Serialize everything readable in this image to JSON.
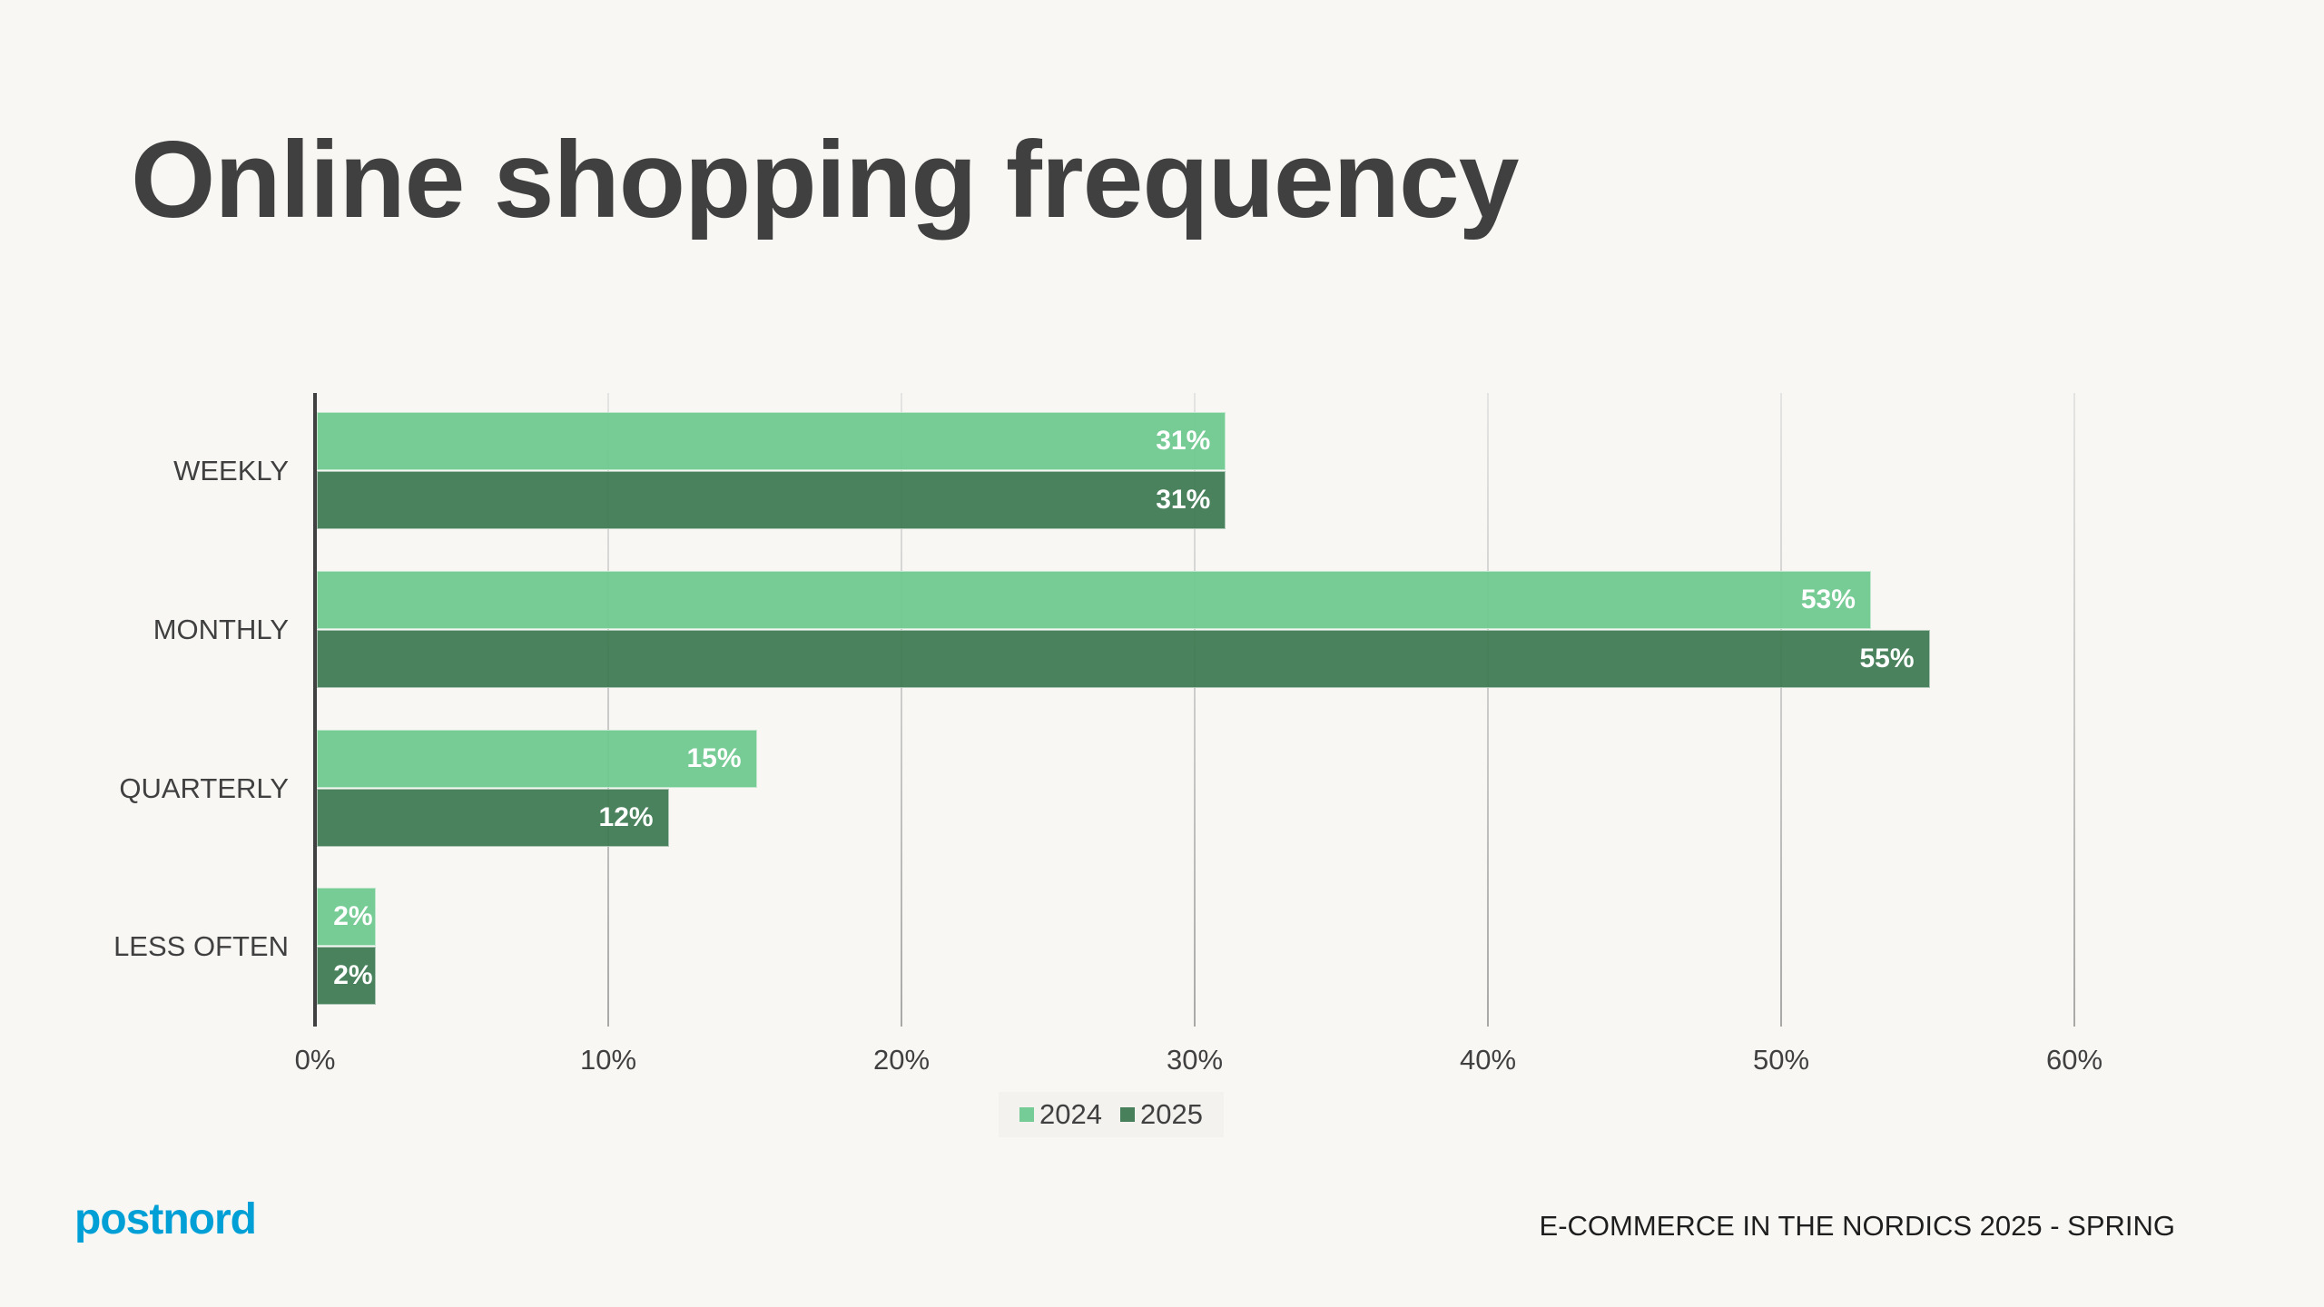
{
  "title": "Online shopping frequency",
  "brand": {
    "logo_text": "postnord",
    "logo_color": "#00A0D6"
  },
  "footer": {
    "text": "E-COMMERCE IN THE NORDICS 2025 - SPRING"
  },
  "colors": {
    "s2024": "#76CC96",
    "s2025": "#47805A",
    "background": "#F8F7F4",
    "text": "#404040"
  },
  "chart_data": {
    "type": "bar",
    "orientation": "horizontal",
    "title": "Online shopping frequency",
    "categories": [
      "WEEKLY",
      "MONTHLY",
      "QUARTERLY",
      "LESS OFTEN"
    ],
    "series": [
      {
        "name": "2024",
        "values": [
          31,
          53,
          15,
          2
        ],
        "labels": [
          "31%",
          "53%",
          "15%",
          "2%"
        ],
        "color": "#76CC96"
      },
      {
        "name": "2025",
        "values": [
          31,
          55,
          12,
          2
        ],
        "labels": [
          "31%",
          "55%",
          "12%",
          "2%"
        ],
        "color": "#47805A"
      }
    ],
    "xlabel": "",
    "ylabel": "",
    "xlim": [
      0,
      60
    ],
    "x_ticks": [
      "0%",
      "10%",
      "20%",
      "30%",
      "40%",
      "50%",
      "60%"
    ],
    "grid": true,
    "legend": {
      "position": "bottom",
      "entries": [
        "2024",
        "2025"
      ]
    },
    "unit": "%"
  }
}
